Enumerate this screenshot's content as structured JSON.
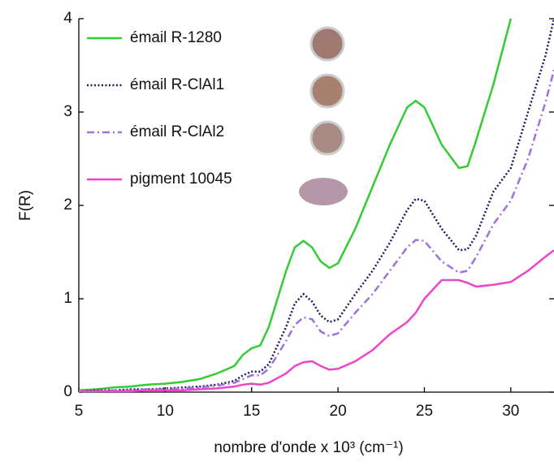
{
  "chart_data": {
    "type": "line",
    "x_label": "nombre d'onde x 10³ (cm⁻¹)",
    "y_label": "F(R)",
    "x": [
      5,
      6,
      7,
      8,
      9,
      10,
      11,
      12,
      13,
      14,
      14.5,
      15,
      15.5,
      16,
      17,
      17.5,
      18,
      18.5,
      19,
      19.5,
      20,
      21,
      22,
      23,
      24,
      24.5,
      25,
      26,
      27,
      27.5,
      28,
      29,
      30,
      31,
      32,
      32.5
    ],
    "series": [
      {
        "name": "émail R-1280",
        "color": "#33cc33",
        "dash": "solid",
        "values": [
          0.02,
          0.03,
          0.05,
          0.06,
          0.08,
          0.09,
          0.11,
          0.14,
          0.2,
          0.28,
          0.4,
          0.47,
          0.5,
          0.7,
          1.3,
          1.55,
          1.62,
          1.55,
          1.4,
          1.33,
          1.38,
          1.75,
          2.2,
          2.65,
          3.05,
          3.12,
          3.05,
          2.65,
          2.4,
          2.42,
          2.7,
          3.3,
          4.0,
          null,
          null,
          null
        ]
      },
      {
        "name": "émail R-ClAl1",
        "color": "#1a1a5e",
        "dash": "dotted",
        "values": [
          0.01,
          0.02,
          0.02,
          0.03,
          0.03,
          0.04,
          0.05,
          0.06,
          0.08,
          0.12,
          0.18,
          0.22,
          0.22,
          0.3,
          0.7,
          0.95,
          1.05,
          0.97,
          0.82,
          0.75,
          0.78,
          1.05,
          1.3,
          1.6,
          1.95,
          2.07,
          2.05,
          1.75,
          1.52,
          1.53,
          1.68,
          2.15,
          2.4,
          3.0,
          3.6,
          4.0
        ]
      },
      {
        "name": "émail R-ClAl2",
        "color": "#a070e0",
        "dash": "dashdot",
        "values": [
          0.01,
          0.01,
          0.02,
          0.02,
          0.03,
          0.03,
          0.04,
          0.05,
          0.07,
          0.1,
          0.14,
          0.18,
          0.18,
          0.25,
          0.55,
          0.72,
          0.8,
          0.78,
          0.65,
          0.6,
          0.63,
          0.85,
          1.05,
          1.3,
          1.55,
          1.63,
          1.62,
          1.4,
          1.28,
          1.3,
          1.45,
          1.8,
          2.05,
          2.5,
          3.1,
          3.45
        ]
      },
      {
        "name": "pigment 10045",
        "color": "#ee44cc",
        "dash": "solid",
        "values": [
          0.01,
          0.01,
          0.01,
          0.01,
          0.02,
          0.02,
          0.02,
          0.03,
          0.04,
          0.06,
          0.08,
          0.09,
          0.08,
          0.1,
          0.2,
          0.28,
          0.32,
          0.33,
          0.28,
          0.24,
          0.25,
          0.33,
          0.45,
          0.62,
          0.75,
          0.85,
          1.0,
          1.2,
          1.2,
          1.17,
          1.13,
          1.15,
          1.18,
          1.3,
          1.45,
          1.52
        ]
      }
    ],
    "xlim": [
      5,
      32.5
    ],
    "xticks": [
      5,
      10,
      15,
      20,
      25,
      30
    ],
    "ylim": [
      0,
      4
    ],
    "yticks": [
      0,
      1,
      2,
      3,
      4
    ],
    "legend": "upper-left"
  }
}
